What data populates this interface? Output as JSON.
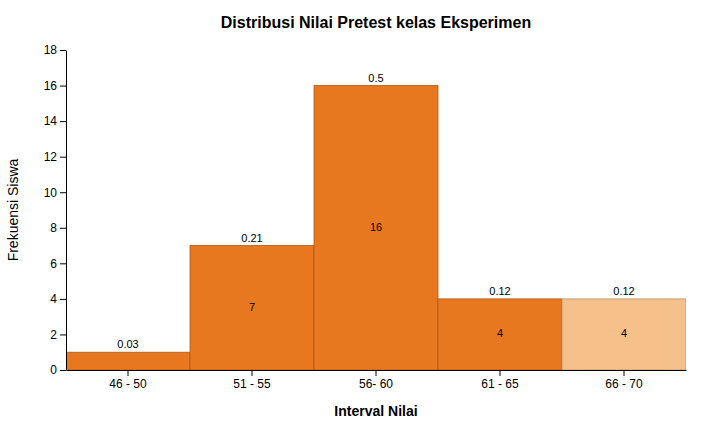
{
  "chart_data": {
    "type": "bar",
    "title": "Distribusi Nilai Pretest kelas Eksperimen",
    "x_label": "Interval Nilai",
    "y_label": "Frekuensi Siswa",
    "categories": [
      "46 - 50",
      "51 - 55",
      "56- 60",
      "61 - 65",
      "66 - 70"
    ],
    "values": [
      1,
      7,
      16,
      4,
      4
    ],
    "data_labels": true,
    "value_labels": [
      null,
      "7",
      "16",
      "4",
      "4"
    ],
    "relative_freq": [
      0.03,
      0.21,
      0.5,
      0.12,
      0.12
    ],
    "colors": [
      "#E87820",
      "#E87820",
      "#E87820",
      "#E87820",
      "#F5C08A"
    ],
    "ylim": [
      0,
      18
    ],
    "yticks": [
      0,
      2,
      4,
      6,
      8,
      10,
      12,
      14,
      16,
      18
    ],
    "grid": false
  }
}
